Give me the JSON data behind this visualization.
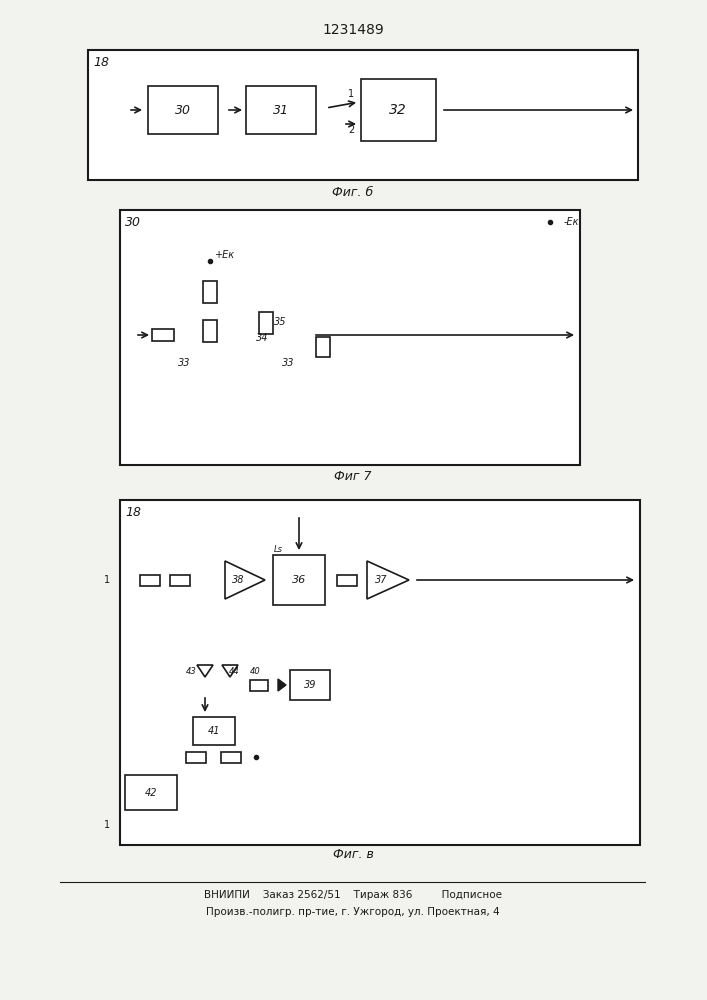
{
  "title": "1231489",
  "fig6_caption": "Фиг. б",
  "fig7_caption": "Фиг 7",
  "fig8_caption": "Фиг. в",
  "footer_line1": "ВНИИПИ    Заказ 2562/51    Тираж 836         Подписное",
  "footer_line2": "Произв.-полигр. пр-тие, г. Ужгород, ул. Проектная, 4",
  "bg_color": "#f2f2ee",
  "lc": "#1a1a1a"
}
